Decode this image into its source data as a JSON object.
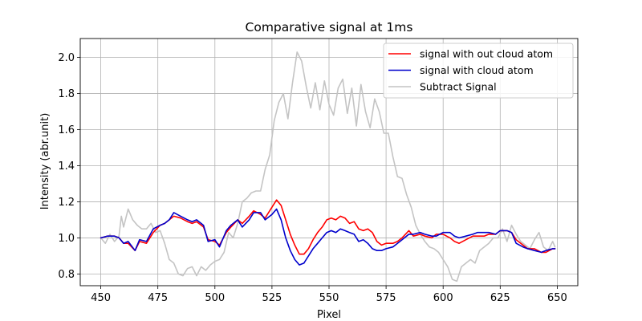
{
  "chart_data": {
    "type": "line",
    "title": "Comparative signal at 1ms",
    "xlabel": "Pixel",
    "ylabel": "Intensity (abr.unit)",
    "xlim": [
      441,
      659
    ],
    "ylim": [
      0.735,
      2.105
    ],
    "xticks": [
      450,
      475,
      500,
      525,
      550,
      575,
      600,
      625,
      650
    ],
    "yticks": [
      0.8,
      1.0,
      1.2,
      1.4,
      1.6,
      1.8,
      2.0
    ],
    "ytick_labels": [
      "0.8",
      "1.0",
      "1.2",
      "1.4",
      "1.6",
      "1.8",
      "2.0"
    ],
    "grid": true,
    "legend_position": "top-right",
    "series": [
      {
        "name": "signal with out cloud atom",
        "color": "#ff0000",
        "x": [
          450,
          453,
          456,
          458,
          460,
          462,
          465,
          467,
          470,
          473,
          476,
          478,
          480,
          482,
          485,
          488,
          490,
          492,
          495,
          497,
          500,
          502,
          505,
          507,
          510,
          512,
          515,
          517,
          520,
          522,
          525,
          527,
          529,
          531,
          533,
          535,
          537,
          539,
          541,
          543,
          545,
          547,
          549,
          551,
          553,
          555,
          557,
          559,
          561,
          563,
          565,
          567,
          569,
          571,
          573,
          575,
          578,
          580,
          582,
          585,
          587,
          590,
          592,
          595,
          597,
          600,
          603,
          605,
          607,
          610,
          613,
          615,
          618,
          620,
          623,
          625,
          628,
          630,
          632,
          635,
          637,
          640,
          643,
          645,
          648,
          649
        ],
        "y": [
          1.0,
          1.01,
          1.01,
          1.0,
          0.97,
          0.97,
          0.93,
          0.98,
          0.97,
          1.03,
          1.07,
          1.08,
          1.1,
          1.12,
          1.11,
          1.09,
          1.08,
          1.09,
          1.06,
          0.99,
          0.98,
          0.96,
          1.03,
          1.06,
          1.1,
          1.08,
          1.12,
          1.15,
          1.13,
          1.11,
          1.17,
          1.21,
          1.18,
          1.1,
          1.02,
          0.96,
          0.91,
          0.91,
          0.94,
          0.99,
          1.03,
          1.06,
          1.1,
          1.11,
          1.1,
          1.12,
          1.11,
          1.08,
          1.09,
          1.05,
          1.04,
          1.05,
          1.03,
          0.98,
          0.96,
          0.97,
          0.97,
          0.98,
          1.0,
          1.04,
          1.01,
          1.02,
          1.01,
          1.0,
          1.02,
          1.02,
          1.0,
          0.98,
          0.97,
          0.99,
          1.01,
          1.01,
          1.01,
          1.02,
          1.02,
          1.04,
          1.04,
          1.03,
          0.99,
          0.96,
          0.94,
          0.94,
          0.92,
          0.92,
          0.94,
          0.94
        ]
      },
      {
        "name": "signal with cloud atom",
        "color": "#0000cc",
        "x": [
          450,
          453,
          456,
          458,
          460,
          462,
          465,
          467,
          470,
          473,
          476,
          478,
          480,
          482,
          485,
          488,
          490,
          492,
          495,
          497,
          500,
          502,
          505,
          507,
          510,
          512,
          515,
          517,
          520,
          522,
          525,
          527,
          529,
          531,
          533,
          535,
          537,
          539,
          541,
          543,
          545,
          547,
          549,
          551,
          553,
          555,
          557,
          559,
          561,
          563,
          565,
          567,
          569,
          571,
          573,
          575,
          578,
          580,
          582,
          585,
          587,
          590,
          592,
          595,
          597,
          600,
          603,
          605,
          607,
          610,
          613,
          615,
          618,
          620,
          623,
          625,
          628,
          630,
          632,
          635,
          637,
          640,
          643,
          645,
          648,
          649
        ],
        "y": [
          1.0,
          1.01,
          1.01,
          1.0,
          0.97,
          0.98,
          0.93,
          0.99,
          0.98,
          1.05,
          1.07,
          1.08,
          1.1,
          1.14,
          1.12,
          1.1,
          1.09,
          1.1,
          1.07,
          0.98,
          0.99,
          0.95,
          1.04,
          1.07,
          1.1,
          1.06,
          1.1,
          1.14,
          1.14,
          1.1,
          1.13,
          1.16,
          1.1,
          1.0,
          0.93,
          0.88,
          0.85,
          0.86,
          0.9,
          0.94,
          0.97,
          1.0,
          1.03,
          1.04,
          1.03,
          1.05,
          1.04,
          1.03,
          1.02,
          0.98,
          0.99,
          0.97,
          0.94,
          0.93,
          0.93,
          0.94,
          0.95,
          0.97,
          0.99,
          1.02,
          1.02,
          1.03,
          1.02,
          1.01,
          1.01,
          1.03,
          1.03,
          1.01,
          1.0,
          1.01,
          1.02,
          1.03,
          1.03,
          1.03,
          1.02,
          1.04,
          1.04,
          1.03,
          0.97,
          0.95,
          0.94,
          0.93,
          0.92,
          0.93,
          0.94,
          0.94
        ]
      },
      {
        "name": "Subtract Signal",
        "color": "#c4c4c4",
        "x": [
          450,
          452,
          454,
          456,
          458,
          459,
          460,
          462,
          464,
          466,
          468,
          470,
          472,
          474,
          476,
          478,
          480,
          482,
          484,
          486,
          488,
          490,
          492,
          494,
          496,
          498,
          500,
          502,
          504,
          506,
          508,
          510,
          512,
          514,
          516,
          518,
          520,
          522,
          524,
          526,
          528,
          530,
          532,
          534,
          536,
          538,
          540,
          542,
          544,
          546,
          548,
          550,
          552,
          554,
          556,
          558,
          560,
          562,
          564,
          566,
          568,
          570,
          572,
          574,
          576,
          578,
          580,
          582,
          584,
          586,
          588,
          590,
          592,
          594,
          596,
          598,
          600,
          602,
          604,
          606,
          608,
          610,
          612,
          614,
          616,
          618,
          620,
          622,
          624,
          626,
          628,
          630,
          632,
          634,
          636,
          638,
          640,
          642,
          644,
          646,
          648,
          649
        ],
        "y": [
          1.0,
          0.97,
          1.02,
          0.98,
          1.01,
          1.12,
          1.06,
          1.16,
          1.1,
          1.07,
          1.05,
          1.05,
          1.08,
          1.03,
          1.04,
          0.97,
          0.88,
          0.86,
          0.8,
          0.79,
          0.83,
          0.84,
          0.79,
          0.84,
          0.82,
          0.85,
          0.87,
          0.88,
          0.92,
          1.03,
          1.0,
          1.08,
          1.2,
          1.22,
          1.25,
          1.26,
          1.26,
          1.38,
          1.46,
          1.65,
          1.75,
          1.8,
          1.66,
          1.86,
          2.03,
          1.98,
          1.84,
          1.72,
          1.86,
          1.71,
          1.87,
          1.74,
          1.68,
          1.83,
          1.88,
          1.69,
          1.83,
          1.62,
          1.85,
          1.7,
          1.61,
          1.77,
          1.7,
          1.58,
          1.58,
          1.45,
          1.34,
          1.33,
          1.24,
          1.17,
          1.07,
          1.02,
          0.98,
          0.95,
          0.94,
          0.92,
          0.88,
          0.84,
          0.77,
          0.76,
          0.84,
          0.86,
          0.88,
          0.86,
          0.93,
          0.95,
          0.97,
          1.0,
          1.0,
          1.05,
          0.98,
          1.07,
          1.02,
          0.98,
          0.96,
          0.94,
          0.99,
          1.03,
          0.95,
          0.93,
          0.98,
          0.95
        ]
      }
    ]
  }
}
